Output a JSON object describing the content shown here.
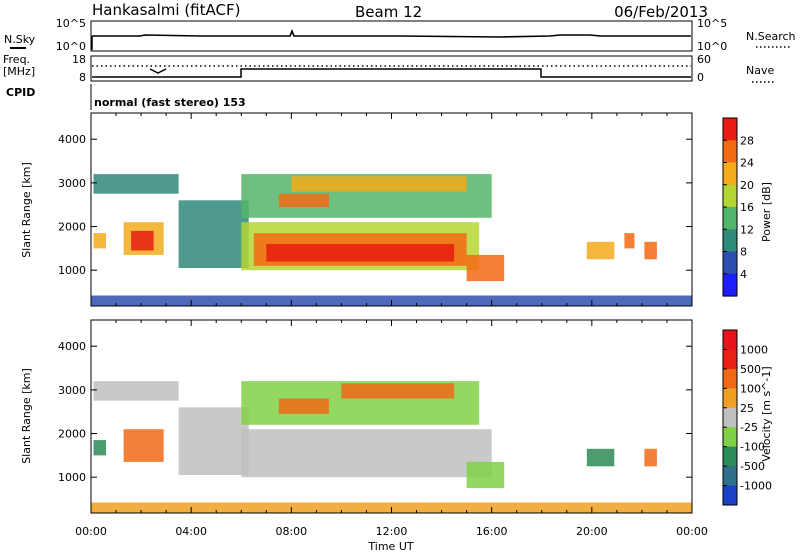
{
  "header": {
    "station": "Hankasalmi (fitACF)",
    "beam": "Beam 12",
    "date": "06/Feb/2013"
  },
  "noise_panel": {
    "left_label": "N.Sky",
    "right_label": "N.Search",
    "left_ticks": [
      "10^5",
      "10^0"
    ],
    "right_ticks": [
      "10^5",
      "10^0"
    ]
  },
  "freq_panel": {
    "left_label_1": "Freq.",
    "left_label_2": "[MHz]",
    "right_label": "Nave",
    "left_ticks": [
      "18",
      "8"
    ],
    "right_ticks": [
      "60",
      "0"
    ]
  },
  "cpid": {
    "label": "CPID",
    "text": "normal (fast stereo) 153"
  },
  "axis_text": {
    "ylabel": "Slant Range [km]",
    "xlabel": "Time UT",
    "x_ticks": [
      "00:00",
      "04:00",
      "08:00",
      "12:00",
      "16:00",
      "20:00",
      "00:00"
    ],
    "y_ticks": [
      "1000",
      "2000",
      "3000",
      "4000"
    ]
  },
  "chart_data": [
    {
      "type": "heatmap",
      "variable": "Power",
      "colorbar_label": "Power [dB]",
      "colorbar_ticks": [
        "4",
        "8",
        "12",
        "16",
        "20",
        "24",
        "28"
      ],
      "colorbar_colors": [
        "#1d1dff",
        "#2f4fb0",
        "#2f8a7a",
        "#53b56a",
        "#b4d634",
        "#f2ac1c",
        "#f26a12",
        "#e81c12"
      ],
      "x_range_hours": [
        0,
        24
      ],
      "y_range_km": [
        180,
        4600
      ],
      "regions": [
        {
          "t": [
            0.1,
            0.6
          ],
          "r": [
            1500,
            1850
          ],
          "level": 5
        },
        {
          "t": [
            1.3,
            2.9
          ],
          "r": [
            1350,
            2100
          ],
          "level": 5
        },
        {
          "t": [
            1.6,
            2.5
          ],
          "r": [
            1450,
            1900
          ],
          "level": 7
        },
        {
          "t": [
            0.1,
            3.5
          ],
          "r": [
            2750,
            3200
          ],
          "level": 2
        },
        {
          "t": [
            3.5,
            6.3
          ],
          "r": [
            1050,
            2600
          ],
          "level": 2
        },
        {
          "t": [
            6.0,
            15.5
          ],
          "r": [
            1000,
            2100
          ],
          "level": 4
        },
        {
          "t": [
            6.5,
            15.0
          ],
          "r": [
            1100,
            1850
          ],
          "level": 6
        },
        {
          "t": [
            7.0,
            14.5
          ],
          "r": [
            1200,
            1600
          ],
          "level": 7
        },
        {
          "t": [
            6.0,
            16.0
          ],
          "r": [
            2200,
            3200
          ],
          "level": 3
        },
        {
          "t": [
            7.5,
            9.5
          ],
          "r": [
            2450,
            2750
          ],
          "level": 6
        },
        {
          "t": [
            8.0,
            15.0
          ],
          "r": [
            2800,
            3150
          ],
          "level": 5
        },
        {
          "t": [
            15.0,
            16.5
          ],
          "r": [
            750,
            1350
          ],
          "level": 6
        },
        {
          "t": [
            19.8,
            20.9
          ],
          "r": [
            1250,
            1650
          ],
          "level": 5
        },
        {
          "t": [
            21.3,
            21.7
          ],
          "r": [
            1500,
            1850
          ],
          "level": 6
        },
        {
          "t": [
            22.1,
            22.6
          ],
          "r": [
            1250,
            1650
          ],
          "level": 6
        },
        {
          "t": [
            0.0,
            24.0
          ],
          "r": [
            180,
            420
          ],
          "level": 1
        }
      ]
    },
    {
      "type": "heatmap",
      "variable": "Velocity",
      "colorbar_label": "Velocity [m s^-1]",
      "colorbar_ticks": [
        "1000",
        "500",
        "100",
        "25",
        "-25",
        "-100",
        "-500",
        "-1000"
      ],
      "colorbar_colors": [
        "#1a3fc8",
        "#2f6f8c",
        "#2e8b57",
        "#7fd148",
        "#c0c0c0",
        "#f0a020",
        "#f06a16",
        "#ea2014",
        "#e8131c"
      ],
      "x_range_hours": [
        0,
        24
      ],
      "y_range_km": [
        180,
        4600
      ],
      "regions": [
        {
          "t": [
            0.1,
            0.6
          ],
          "r": [
            1500,
            1850
          ],
          "level": 2
        },
        {
          "t": [
            1.3,
            2.9
          ],
          "r": [
            1350,
            2100
          ],
          "level": 6
        },
        {
          "t": [
            0.1,
            3.5
          ],
          "r": [
            2750,
            3200
          ],
          "level": 4
        },
        {
          "t": [
            3.5,
            6.3
          ],
          "r": [
            1050,
            2600
          ],
          "level": 4
        },
        {
          "t": [
            6.0,
            16.0
          ],
          "r": [
            1000,
            2100
          ],
          "level": 4
        },
        {
          "t": [
            6.0,
            15.5
          ],
          "r": [
            2200,
            3200
          ],
          "level": 3
        },
        {
          "t": [
            7.5,
            9.5
          ],
          "r": [
            2450,
            2800
          ],
          "level": 6
        },
        {
          "t": [
            10.0,
            14.5
          ],
          "r": [
            2800,
            3150
          ],
          "level": 6
        },
        {
          "t": [
            15.0,
            16.5
          ],
          "r": [
            750,
            1350
          ],
          "level": 3
        },
        {
          "t": [
            19.8,
            20.9
          ],
          "r": [
            1250,
            1650
          ],
          "level": 2
        },
        {
          "t": [
            22.1,
            22.6
          ],
          "r": [
            1250,
            1650
          ],
          "level": 6
        },
        {
          "t": [
            0.0,
            24.0
          ],
          "r": [
            180,
            420
          ],
          "level": 5
        }
      ]
    }
  ]
}
